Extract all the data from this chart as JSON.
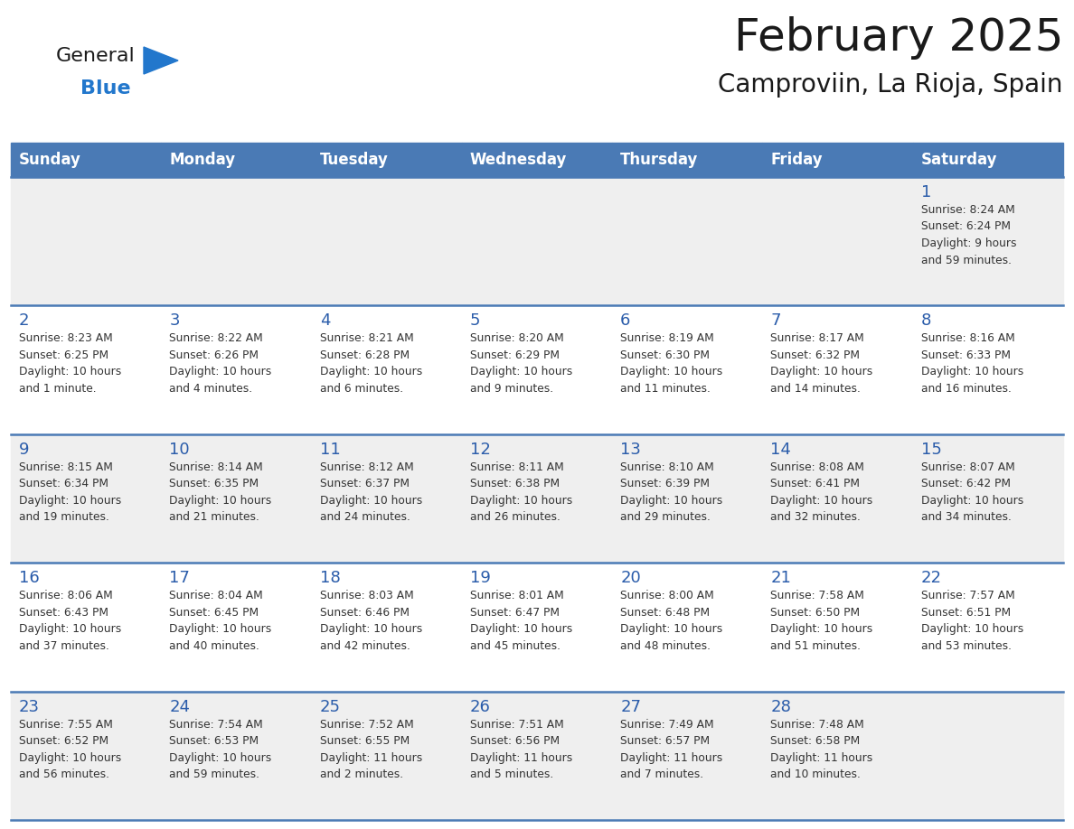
{
  "title": "February 2025",
  "subtitle": "Camproviin, La Rioja, Spain",
  "header_bg": "#4a7ab5",
  "header_text_color": "#ffffff",
  "cell_bg_light": "#efefef",
  "cell_bg_white": "#ffffff",
  "day_headers": [
    "Sunday",
    "Monday",
    "Tuesday",
    "Wednesday",
    "Thursday",
    "Friday",
    "Saturday"
  ],
  "title_color": "#1a1a1a",
  "subtitle_color": "#1a1a1a",
  "day_num_color": "#2a5caa",
  "info_color": "#333333",
  "line_color": "#4a7ab5",
  "logo_general_color": "#1a1a1a",
  "logo_blue_color": "#2277cc",
  "weeks": [
    [
      {
        "day": "",
        "info": ""
      },
      {
        "day": "",
        "info": ""
      },
      {
        "day": "",
        "info": ""
      },
      {
        "day": "",
        "info": ""
      },
      {
        "day": "",
        "info": ""
      },
      {
        "day": "",
        "info": ""
      },
      {
        "day": "1",
        "info": "Sunrise: 8:24 AM\nSunset: 6:24 PM\nDaylight: 9 hours\nand 59 minutes."
      }
    ],
    [
      {
        "day": "2",
        "info": "Sunrise: 8:23 AM\nSunset: 6:25 PM\nDaylight: 10 hours\nand 1 minute."
      },
      {
        "day": "3",
        "info": "Sunrise: 8:22 AM\nSunset: 6:26 PM\nDaylight: 10 hours\nand 4 minutes."
      },
      {
        "day": "4",
        "info": "Sunrise: 8:21 AM\nSunset: 6:28 PM\nDaylight: 10 hours\nand 6 minutes."
      },
      {
        "day": "5",
        "info": "Sunrise: 8:20 AM\nSunset: 6:29 PM\nDaylight: 10 hours\nand 9 minutes."
      },
      {
        "day": "6",
        "info": "Sunrise: 8:19 AM\nSunset: 6:30 PM\nDaylight: 10 hours\nand 11 minutes."
      },
      {
        "day": "7",
        "info": "Sunrise: 8:17 AM\nSunset: 6:32 PM\nDaylight: 10 hours\nand 14 minutes."
      },
      {
        "day": "8",
        "info": "Sunrise: 8:16 AM\nSunset: 6:33 PM\nDaylight: 10 hours\nand 16 minutes."
      }
    ],
    [
      {
        "day": "9",
        "info": "Sunrise: 8:15 AM\nSunset: 6:34 PM\nDaylight: 10 hours\nand 19 minutes."
      },
      {
        "day": "10",
        "info": "Sunrise: 8:14 AM\nSunset: 6:35 PM\nDaylight: 10 hours\nand 21 minutes."
      },
      {
        "day": "11",
        "info": "Sunrise: 8:12 AM\nSunset: 6:37 PM\nDaylight: 10 hours\nand 24 minutes."
      },
      {
        "day": "12",
        "info": "Sunrise: 8:11 AM\nSunset: 6:38 PM\nDaylight: 10 hours\nand 26 minutes."
      },
      {
        "day": "13",
        "info": "Sunrise: 8:10 AM\nSunset: 6:39 PM\nDaylight: 10 hours\nand 29 minutes."
      },
      {
        "day": "14",
        "info": "Sunrise: 8:08 AM\nSunset: 6:41 PM\nDaylight: 10 hours\nand 32 minutes."
      },
      {
        "day": "15",
        "info": "Sunrise: 8:07 AM\nSunset: 6:42 PM\nDaylight: 10 hours\nand 34 minutes."
      }
    ],
    [
      {
        "day": "16",
        "info": "Sunrise: 8:06 AM\nSunset: 6:43 PM\nDaylight: 10 hours\nand 37 minutes."
      },
      {
        "day": "17",
        "info": "Sunrise: 8:04 AM\nSunset: 6:45 PM\nDaylight: 10 hours\nand 40 minutes."
      },
      {
        "day": "18",
        "info": "Sunrise: 8:03 AM\nSunset: 6:46 PM\nDaylight: 10 hours\nand 42 minutes."
      },
      {
        "day": "19",
        "info": "Sunrise: 8:01 AM\nSunset: 6:47 PM\nDaylight: 10 hours\nand 45 minutes."
      },
      {
        "day": "20",
        "info": "Sunrise: 8:00 AM\nSunset: 6:48 PM\nDaylight: 10 hours\nand 48 minutes."
      },
      {
        "day": "21",
        "info": "Sunrise: 7:58 AM\nSunset: 6:50 PM\nDaylight: 10 hours\nand 51 minutes."
      },
      {
        "day": "22",
        "info": "Sunrise: 7:57 AM\nSunset: 6:51 PM\nDaylight: 10 hours\nand 53 minutes."
      }
    ],
    [
      {
        "day": "23",
        "info": "Sunrise: 7:55 AM\nSunset: 6:52 PM\nDaylight: 10 hours\nand 56 minutes."
      },
      {
        "day": "24",
        "info": "Sunrise: 7:54 AM\nSunset: 6:53 PM\nDaylight: 10 hours\nand 59 minutes."
      },
      {
        "day": "25",
        "info": "Sunrise: 7:52 AM\nSunset: 6:55 PM\nDaylight: 11 hours\nand 2 minutes."
      },
      {
        "day": "26",
        "info": "Sunrise: 7:51 AM\nSunset: 6:56 PM\nDaylight: 11 hours\nand 5 minutes."
      },
      {
        "day": "27",
        "info": "Sunrise: 7:49 AM\nSunset: 6:57 PM\nDaylight: 11 hours\nand 7 minutes."
      },
      {
        "day": "28",
        "info": "Sunrise: 7:48 AM\nSunset: 6:58 PM\nDaylight: 11 hours\nand 10 minutes."
      },
      {
        "day": "",
        "info": ""
      }
    ]
  ]
}
